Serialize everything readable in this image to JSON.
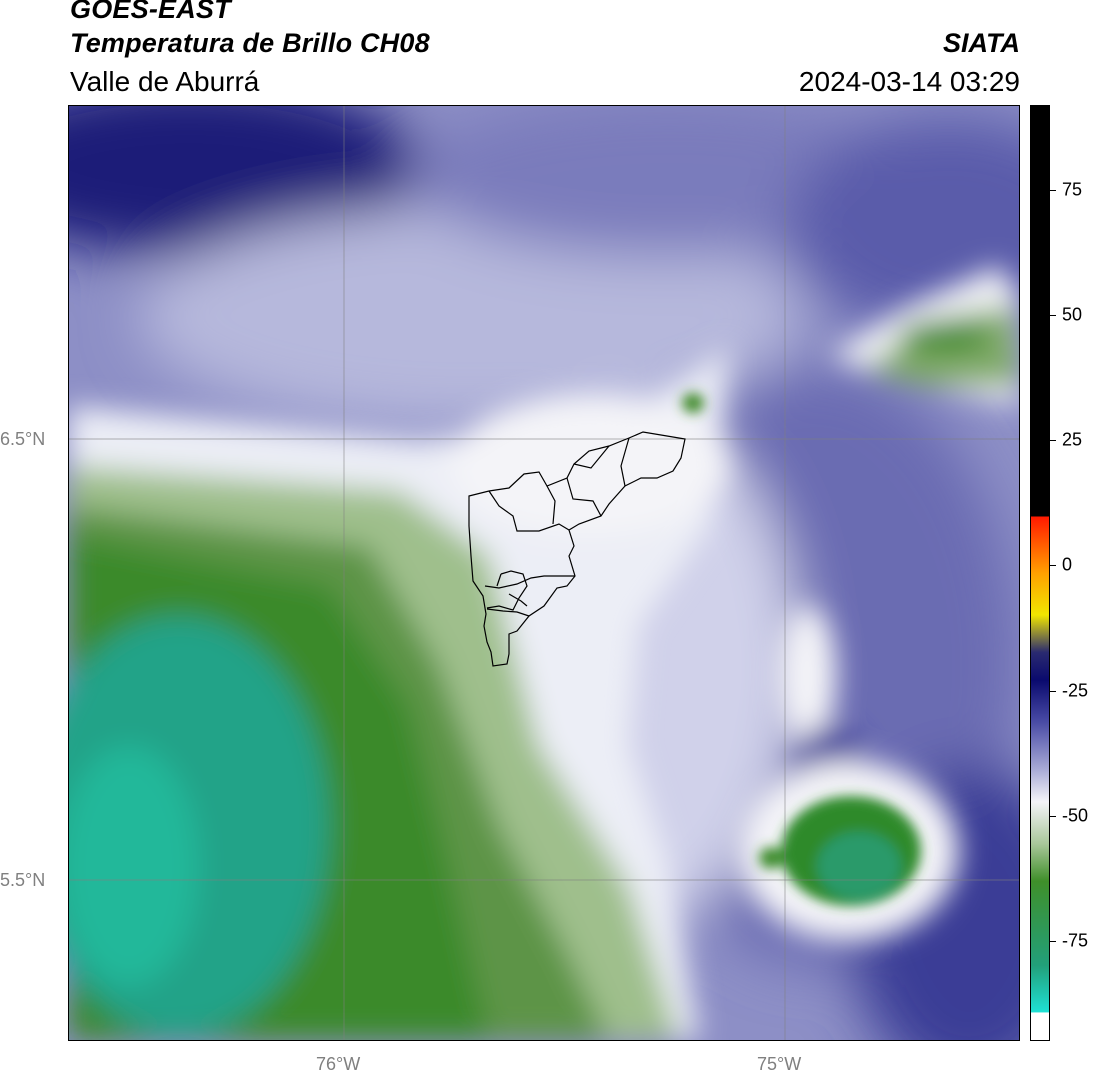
{
  "header": {
    "satellite": "GOES-EAST",
    "product": "Temperatura de Brillo CH08",
    "region": "Valle de Aburrá",
    "organization": "SIATA",
    "timestamp": "2024-03-14 03:29"
  },
  "map": {
    "lat_labels": [
      "6.5°N",
      "5.5°N"
    ],
    "lon_labels": [
      "76°W",
      "75°W"
    ]
  },
  "colorbar": {
    "ticks": [
      "75",
      "50",
      "25",
      "0",
      "-25",
      "-50",
      "-75"
    ],
    "tick_values": [
      75,
      50,
      25,
      0,
      -25,
      -50,
      -75
    ],
    "range": [
      -95,
      92
    ],
    "colors": {
      "cold": "#1fe0d4",
      "green": "#3f8f2a",
      "white": "#f4f4f8",
      "lavender": "#9a9ccc",
      "navy": "#0a0a6a",
      "yellow": "#f0e000",
      "red": "#ff2000",
      "black": "#000000"
    }
  }
}
